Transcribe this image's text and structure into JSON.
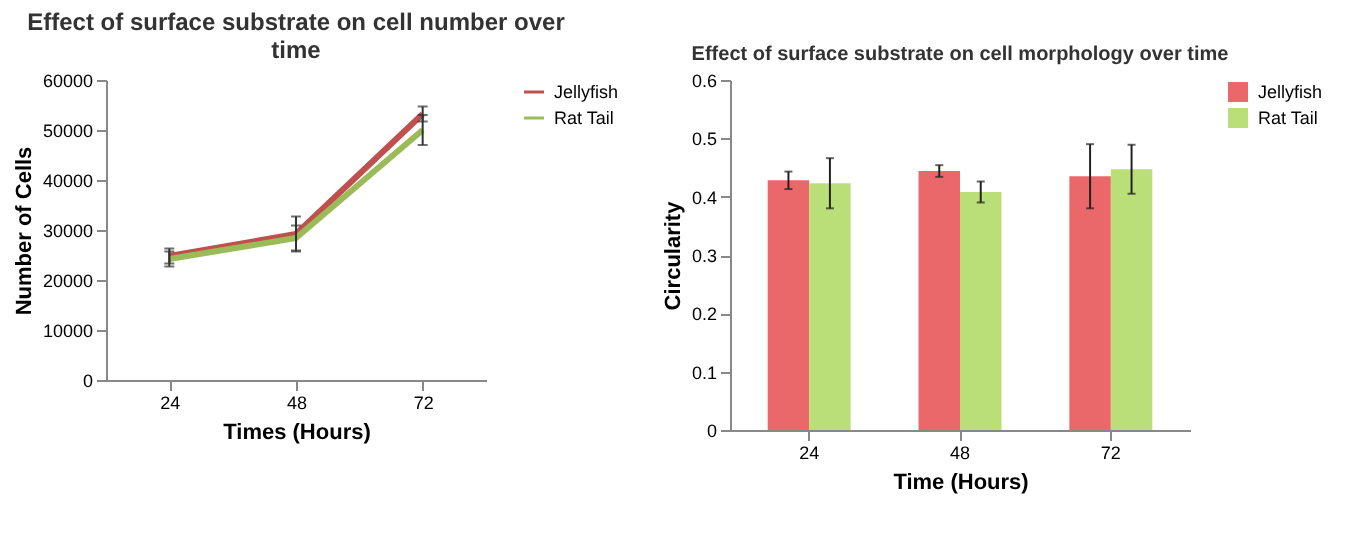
{
  "chart_data": [
    {
      "type": "line",
      "title": "Effect of surface substrate on cell number over time",
      "xlabel": "Times (Hours)",
      "ylabel": "Number of Cells",
      "categories": [
        "24",
        "48",
        "72"
      ],
      "ylim": [
        0,
        60000
      ],
      "yticks": [
        0,
        10000,
        20000,
        30000,
        40000,
        50000,
        60000
      ],
      "legend": "right",
      "grid": false,
      "marker": "none",
      "series": [
        {
          "name": "Jellyfish",
          "color": "#c0504d",
          "values": [
            24800,
            29200,
            53200
          ],
          "errors": [
            1500,
            3500,
            1500
          ]
        },
        {
          "name": "Rat Tail",
          "color": "#9bbb59",
          "values": [
            24200,
            28400,
            50000
          ],
          "errors": [
            1500,
            2500,
            3000
          ]
        }
      ]
    },
    {
      "type": "bar",
      "title": "Effect of surface substrate on cell morphology over time",
      "xlabel": "Time (Hours)",
      "ylabel": "Circularity",
      "categories": [
        "24",
        "48",
        "72"
      ],
      "ylim": [
        0,
        0.6
      ],
      "yticks": [
        0,
        0.1,
        0.2,
        0.3,
        0.4,
        0.5,
        0.6
      ],
      "legend": "right",
      "grid": false,
      "series": [
        {
          "name": "Jellyfish",
          "color": "#e8585a",
          "values": [
            0.428,
            0.444,
            0.435
          ],
          "errors": [
            0.015,
            0.01,
            0.055
          ]
        },
        {
          "name": "Rat Tail",
          "color": "#b3dc6a",
          "values": [
            0.423,
            0.408,
            0.447
          ],
          "errors": [
            0.043,
            0.018,
            0.042
          ]
        }
      ]
    }
  ]
}
